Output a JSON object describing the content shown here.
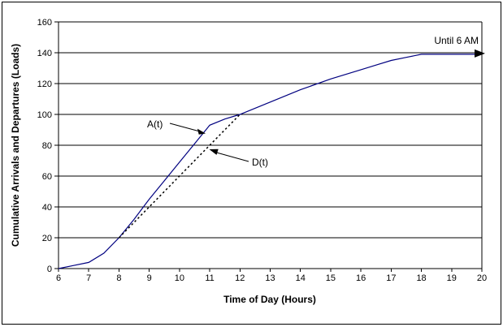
{
  "window": {
    "background": "#ffffff",
    "border_color": "#000000"
  },
  "chart_data": {
    "type": "line",
    "title": "",
    "xlabel": "Time of Day (Hours)",
    "ylabel": "Cumulative Arrivals and Departures (Loads)",
    "xlim": [
      6,
      20
    ],
    "ylim": [
      0,
      160
    ],
    "xticks": [
      6,
      7,
      8,
      9,
      10,
      11,
      12,
      13,
      14,
      15,
      16,
      17,
      18,
      19,
      20
    ],
    "yticks": [
      0,
      20,
      40,
      60,
      80,
      100,
      120,
      140,
      160
    ],
    "grid": "horizontal-only",
    "legend": "none",
    "axis_color": "#000000",
    "series": [
      {
        "name": "A(t)",
        "line_style": "solid",
        "color": "#000080",
        "arrow_end": true,
        "points": [
          [
            6,
            0
          ],
          [
            6.5,
            2
          ],
          [
            7,
            4
          ],
          [
            7.5,
            10
          ],
          [
            8,
            20
          ],
          [
            8.5,
            32
          ],
          [
            9,
            45
          ],
          [
            9.5,
            57
          ],
          [
            10,
            69
          ],
          [
            10.5,
            81
          ],
          [
            11,
            93
          ],
          [
            11.5,
            97
          ],
          [
            12,
            100
          ],
          [
            13,
            108
          ],
          [
            14,
            116
          ],
          [
            15,
            123
          ],
          [
            16,
            129
          ],
          [
            16.5,
            132
          ],
          [
            17,
            135
          ],
          [
            17.5,
            137
          ],
          [
            18,
            139
          ],
          [
            20,
            139
          ]
        ]
      },
      {
        "name": "D(t)",
        "line_style": "dotted",
        "color": "#000000",
        "arrow_end": false,
        "points": [
          [
            8,
            20
          ],
          [
            9,
            40
          ],
          [
            10,
            60
          ],
          [
            11,
            80
          ],
          [
            12,
            100
          ]
        ]
      }
    ],
    "annotations": [
      {
        "text": "Until 6 AM",
        "points_to": "plateau arrow at 139 loads extending right to 20:00"
      },
      {
        "text": "A(t)",
        "points_to": "solid arrival curve near (11, 90)"
      },
      {
        "text": "D(t)",
        "points_to": "dotted departure curve near (10.8, 78)"
      }
    ]
  }
}
